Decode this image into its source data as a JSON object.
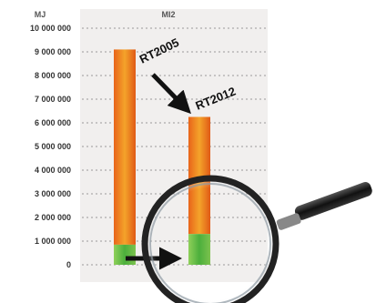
{
  "chart_data": {
    "type": "bar",
    "ylabel": "MJ",
    "series_label": "MI2",
    "ylim": [
      0,
      10000000
    ],
    "yticks": [
      "10 000 000",
      "9 000 000",
      "8 000 000",
      "7 000 000",
      "6 000 000",
      "5 000 000",
      "4 000 000",
      "3 000 000",
      "2 000 000",
      "1 000 000",
      "0"
    ],
    "bars": [
      {
        "label": "RT2005",
        "total": 9100000,
        "base": 850000
      },
      {
        "label": "RT2012",
        "total": 6250000,
        "base": 1300000
      }
    ],
    "colors": {
      "bar_top": "#e8641a",
      "bar_mid": "#f29a1e",
      "base_green": "#4caf3c",
      "base_green_light": "#8fd05a",
      "panel": "#f1efee",
      "grid": "#9a9a9a"
    },
    "annotations": [
      "magnifying-glass-over-base",
      "arrow-RT2005-to-RT2012",
      "arrow-base-comparison"
    ]
  }
}
